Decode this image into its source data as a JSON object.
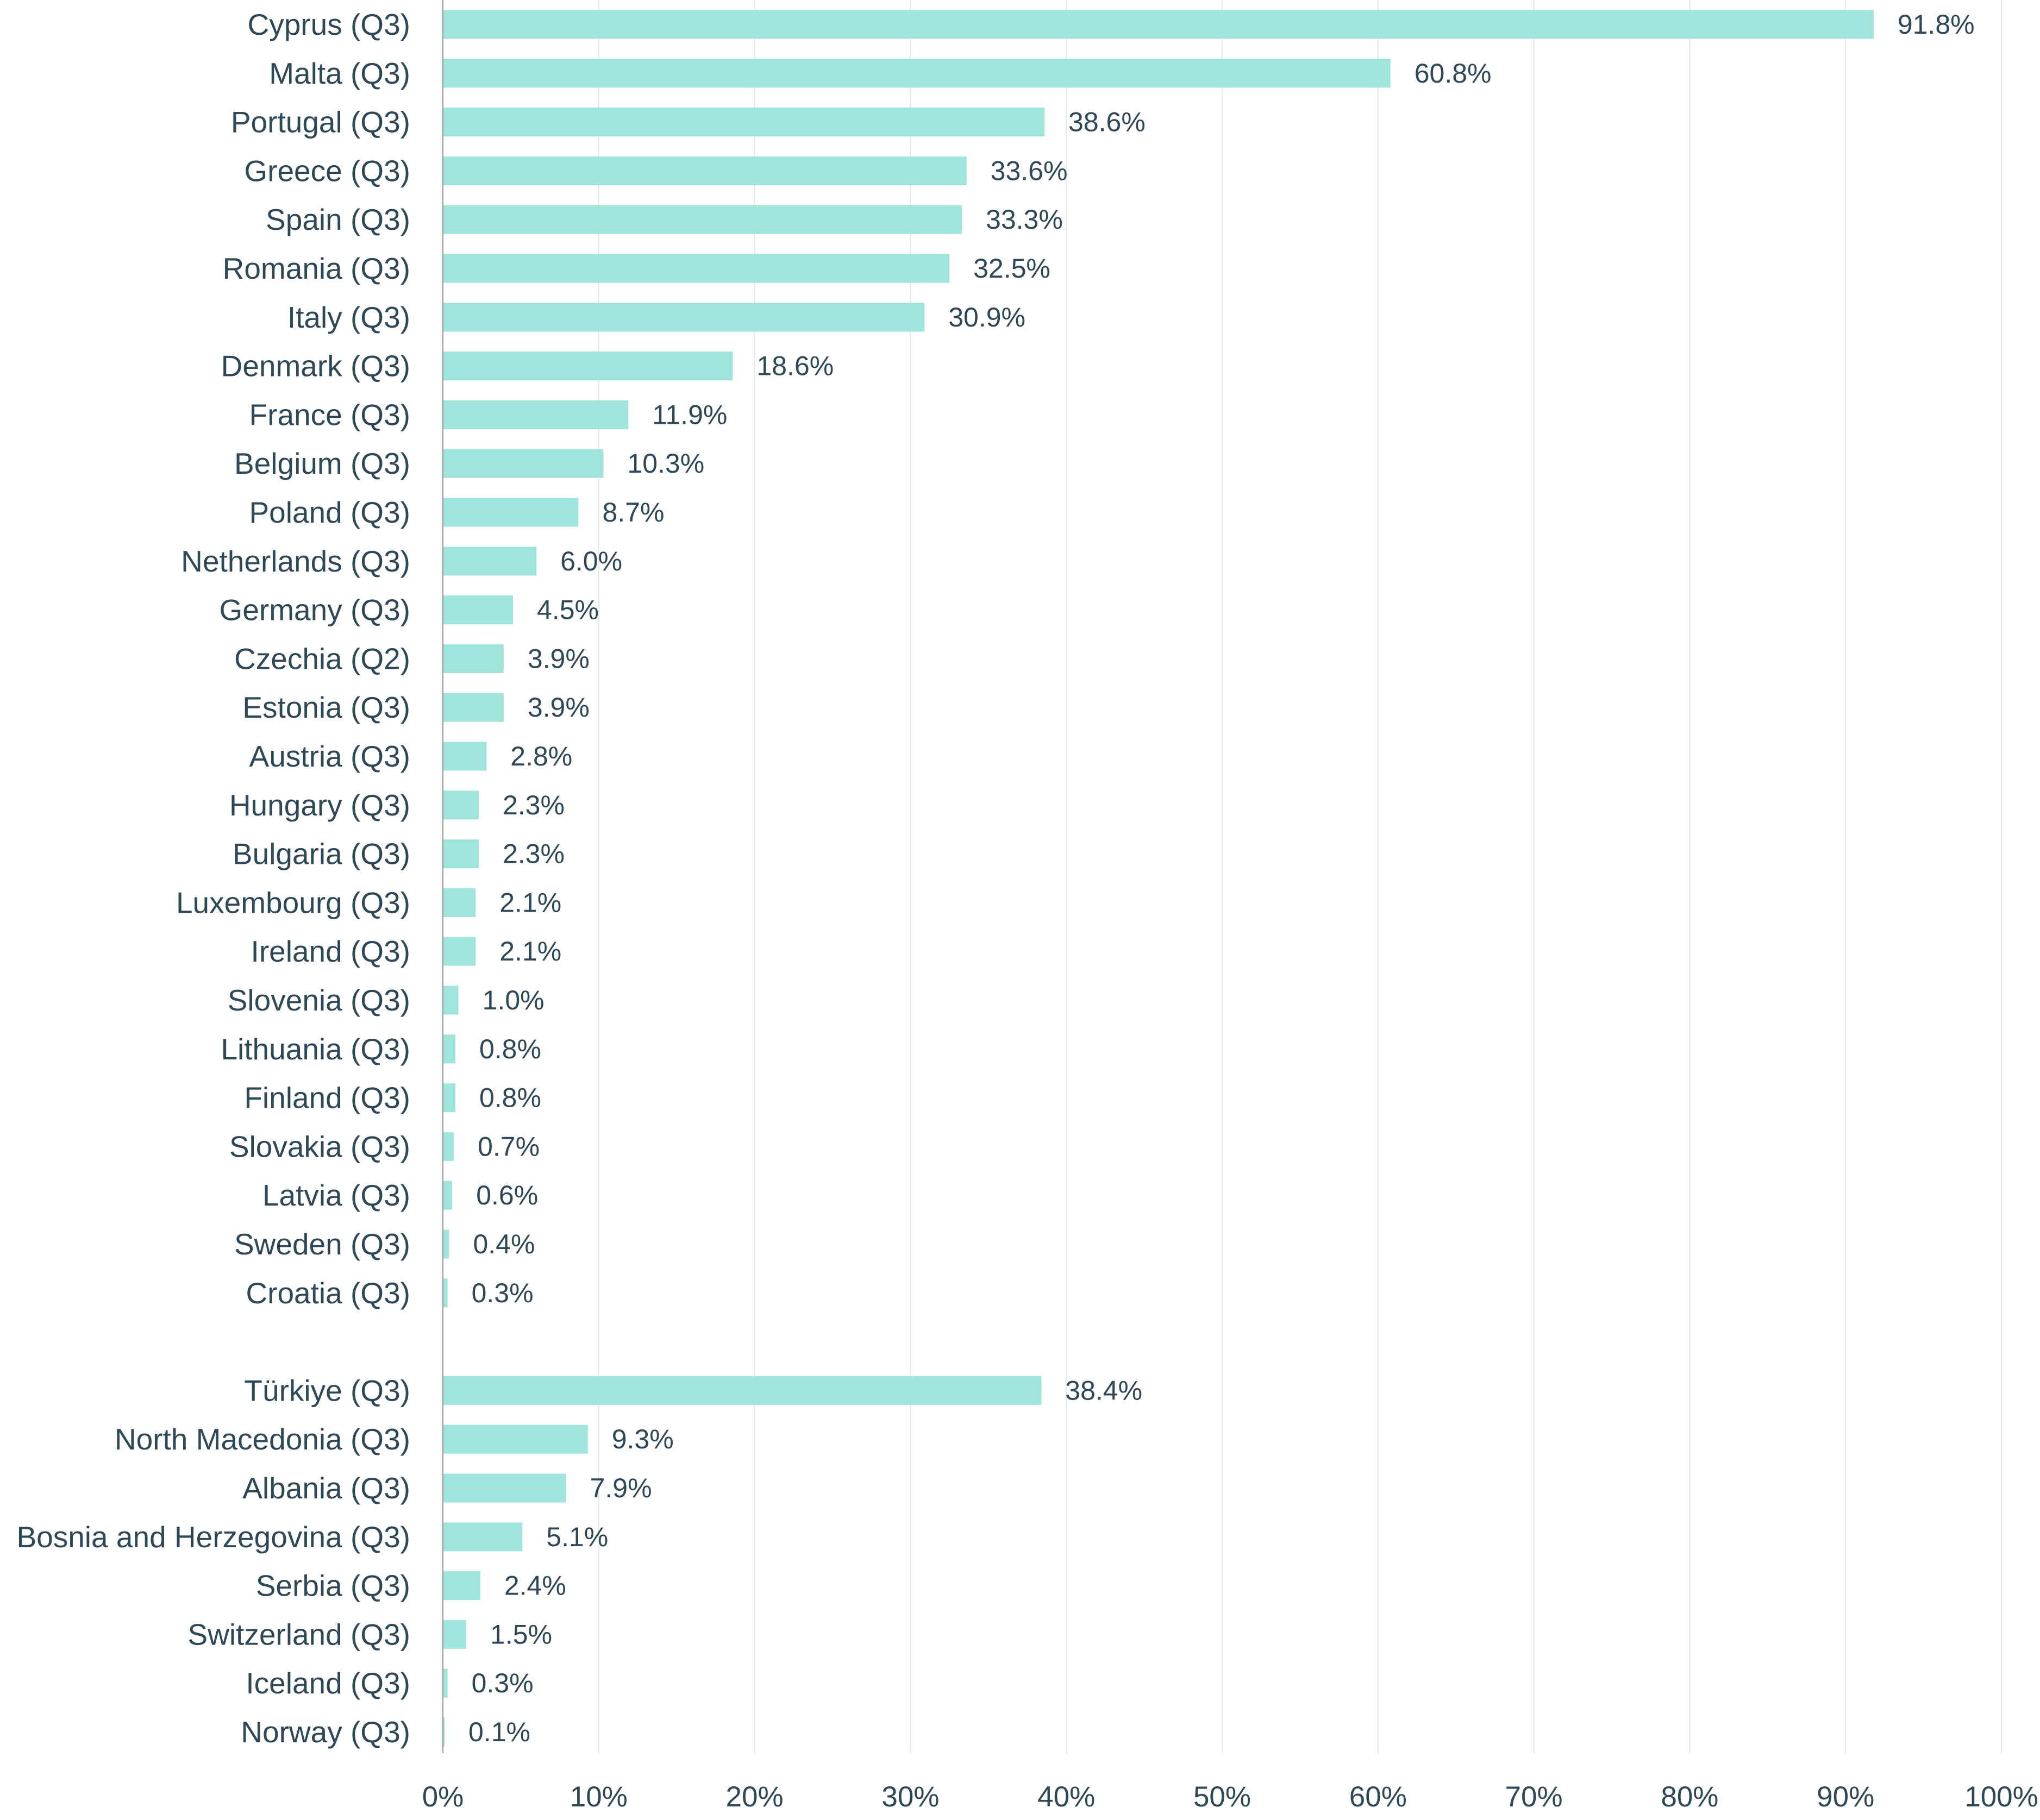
{
  "chart_data": {
    "type": "bar",
    "orientation": "horizontal",
    "bar_color": "#a0e5dc",
    "text_color": "#2f4858",
    "grid": true,
    "xlim": [
      0,
      100
    ],
    "x_ticks": [
      0,
      10,
      20,
      30,
      40,
      50,
      60,
      70,
      80,
      90,
      100
    ],
    "x_tick_labels": [
      "0%",
      "10%",
      "20%",
      "30%",
      "40%",
      "50%",
      "60%",
      "70%",
      "80%",
      "90%",
      "100%"
    ],
    "groups": [
      {
        "categories": [
          "Cyprus (Q3)",
          "Malta (Q3)",
          "Portugal (Q3)",
          "Greece (Q3)",
          "Spain (Q3)",
          "Romania (Q3)",
          "Italy (Q3)",
          "Denmark (Q3)",
          "France (Q3)",
          "Belgium (Q3)",
          "Poland (Q3)",
          "Netherlands (Q3)",
          "Germany (Q3)",
          "Czechia (Q2)",
          "Estonia (Q3)",
          "Austria (Q3)",
          "Hungary (Q3)",
          "Bulgaria (Q3)",
          "Luxembourg (Q3)",
          "Ireland (Q3)",
          "Slovenia (Q3)",
          "Lithuania (Q3)",
          "Finland (Q3)",
          "Slovakia (Q3)",
          "Latvia (Q3)",
          "Sweden (Q3)",
          "Croatia (Q3)"
        ],
        "values": [
          91.8,
          60.8,
          38.6,
          33.6,
          33.3,
          32.5,
          30.9,
          18.6,
          11.9,
          10.3,
          8.7,
          6.0,
          4.5,
          3.9,
          3.9,
          2.8,
          2.3,
          2.3,
          2.1,
          2.1,
          1.0,
          0.8,
          0.8,
          0.7,
          0.6,
          0.4,
          0.3
        ],
        "value_labels": [
          "91.8%",
          "60.8%",
          "38.6%",
          "33.6%",
          "33.3%",
          "32.5%",
          "30.9%",
          "18.6%",
          "11.9%",
          "10.3%",
          "8.7%",
          "6.0%",
          "4.5%",
          "3.9%",
          "3.9%",
          "2.8%",
          "2.3%",
          "2.3%",
          "2.1%",
          "2.1%",
          "1.0%",
          "0.8%",
          "0.8%",
          "0.7%",
          "0.6%",
          "0.4%",
          "0.3%"
        ]
      },
      {
        "categories": [
          "Türkiye (Q3)",
          "North Macedonia (Q3)",
          "Albania (Q3)",
          "Bosnia and Herzegovina (Q3)",
          "Serbia (Q3)",
          "Switzerland (Q3)",
          "Iceland (Q3)",
          "Norway (Q3)"
        ],
        "values": [
          38.4,
          9.3,
          7.9,
          5.1,
          2.4,
          1.5,
          0.3,
          0.1
        ],
        "value_labels": [
          "38.4%",
          "9.3%",
          "7.9%",
          "5.1%",
          "2.4%",
          "1.5%",
          "0.3%",
          "0.1%"
        ]
      }
    ]
  }
}
